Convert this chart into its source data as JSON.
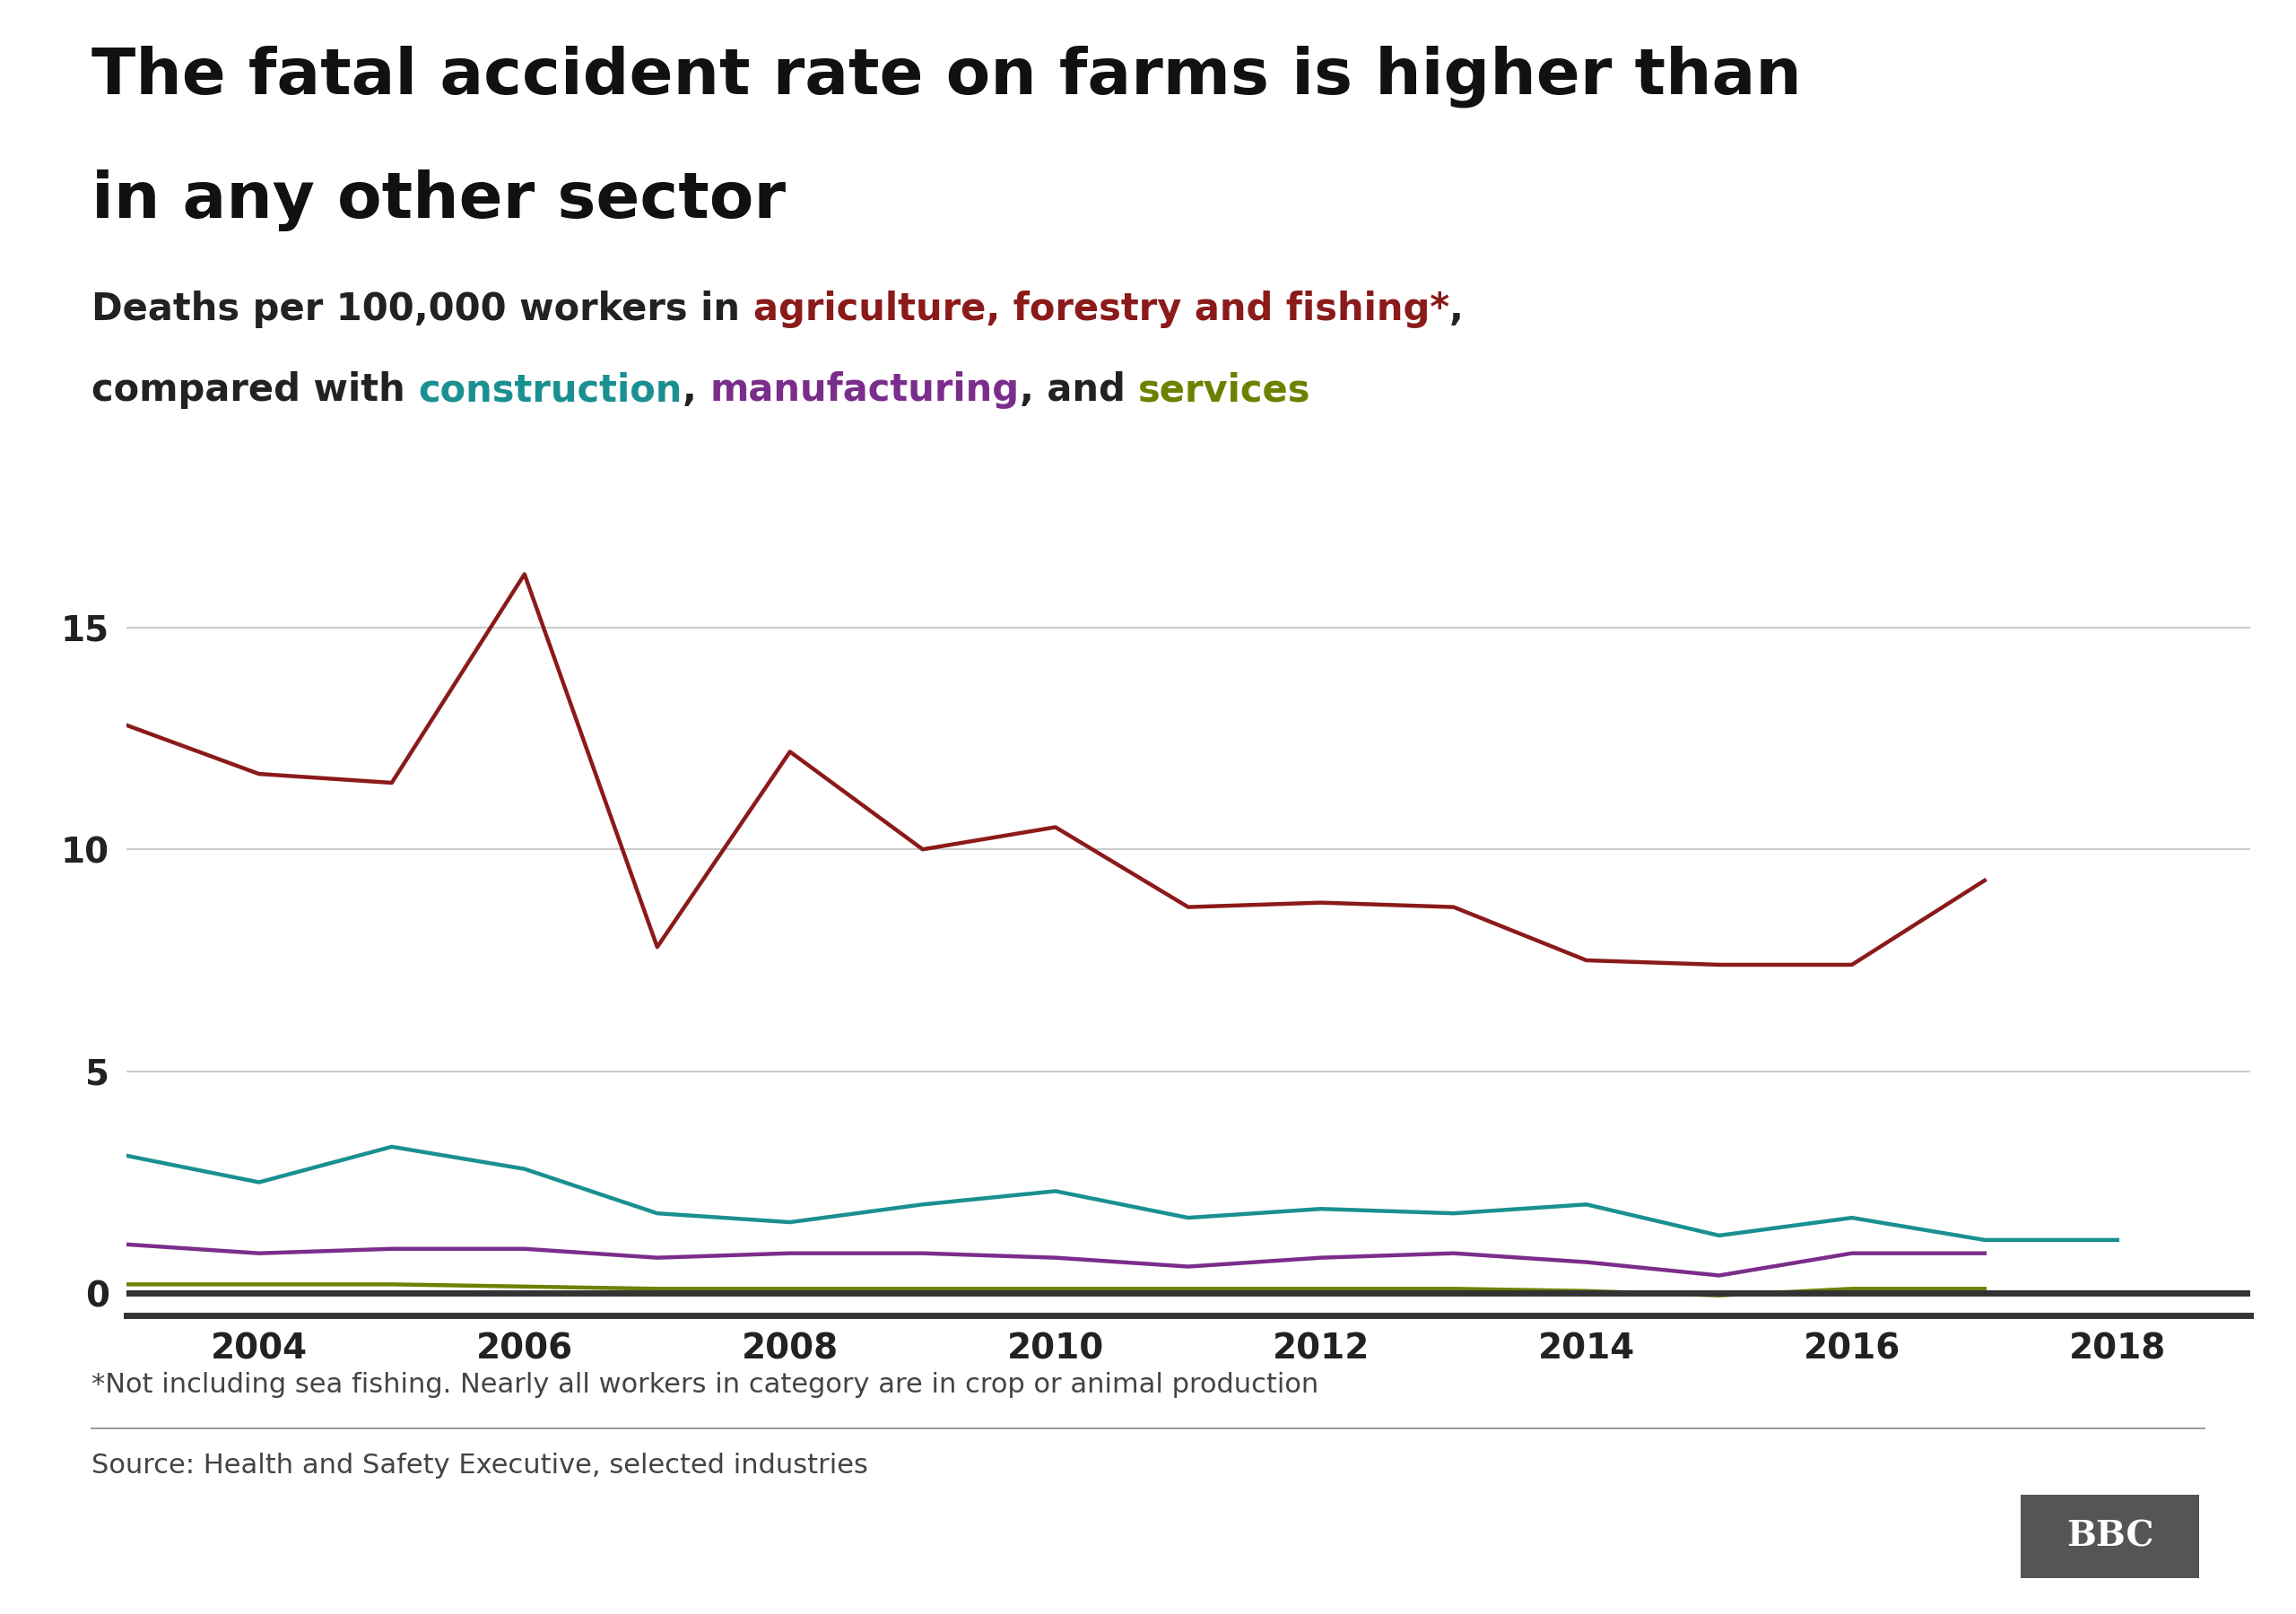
{
  "title_line1": "The fatal accident rate on farms is higher than",
  "title_line2": "in any other sector",
  "years_agri": [
    2003,
    2004,
    2005,
    2006,
    2007,
    2008,
    2009,
    2010,
    2011,
    2012,
    2013,
    2014,
    2015,
    2016,
    2017
  ],
  "years_construction": [
    2003,
    2004,
    2005,
    2006,
    2007,
    2008,
    2009,
    2010,
    2011,
    2012,
    2013,
    2014,
    2015,
    2016,
    2017,
    2018
  ],
  "years_manufacturing": [
    2003,
    2004,
    2005,
    2006,
    2007,
    2008,
    2009,
    2010,
    2011,
    2012,
    2013,
    2014,
    2015,
    2016,
    2017
  ],
  "years_services": [
    2003,
    2004,
    2005,
    2006,
    2007,
    2008,
    2009,
    2010,
    2011,
    2012,
    2013,
    2014,
    2015,
    2016,
    2017
  ],
  "agriculture": [
    12.8,
    11.7,
    11.5,
    16.2,
    7.8,
    12.2,
    10.0,
    10.5,
    8.7,
    8.8,
    8.7,
    7.5,
    7.4,
    7.4,
    9.3
  ],
  "construction": [
    3.1,
    2.5,
    3.3,
    2.8,
    1.8,
    1.6,
    2.0,
    2.3,
    1.7,
    1.9,
    1.8,
    2.0,
    1.3,
    1.7,
    1.2,
    1.2
  ],
  "manufacturing": [
    1.1,
    0.9,
    1.0,
    1.0,
    0.8,
    0.9,
    0.9,
    0.8,
    0.6,
    0.8,
    0.9,
    0.7,
    0.4,
    0.9,
    0.9
  ],
  "services": [
    0.2,
    0.2,
    0.2,
    0.15,
    0.1,
    0.1,
    0.1,
    0.1,
    0.1,
    0.1,
    0.1,
    0.05,
    -0.05,
    0.1,
    0.1
  ],
  "agri_color": "#8B1A1A",
  "construction_color": "#1A9090",
  "manufacturing_color": "#7B2D8B",
  "services_color": "#6B8200",
  "ylim_min": -0.5,
  "ylim_max": 17.5,
  "yticks": [
    0,
    5,
    10,
    15
  ],
  "xtick_years": [
    2004,
    2006,
    2008,
    2010,
    2012,
    2014,
    2016,
    2018
  ],
  "footnote": "*Not including sea fishing. Nearly all workers in category are in crop or animal production",
  "source": "Source: Health and Safety Executive, selected industries",
  "background_color": "#ffffff",
  "grid_color": "#cccccc"
}
